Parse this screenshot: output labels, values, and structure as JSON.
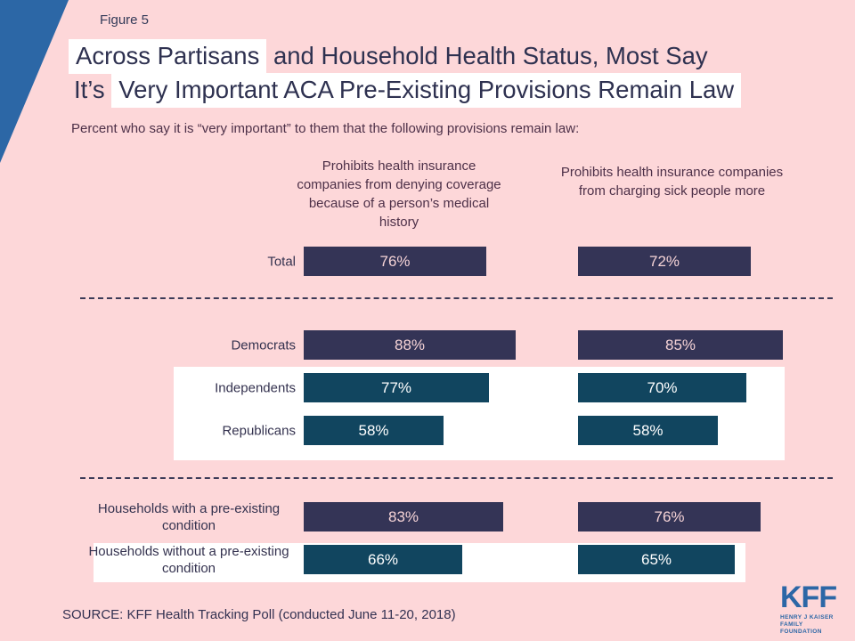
{
  "figure_label": "Figure 5",
  "title": {
    "line1_highlight": "Across Partisans",
    "line1_rest": " and Household Health Status, Most Say",
    "line2_pre": "It’s ",
    "line2_highlight": "Very Important ACA Pre-Existing Provisions Remain Law"
  },
  "subtitle": "Percent who say it is “very important” to them that the following provisions remain law:",
  "chart_data": {
    "type": "bar",
    "orientation": "horizontal",
    "unit": "%",
    "xlim": [
      0,
      100
    ],
    "grid": false,
    "columns": [
      "Prohibits health insurance companies from denying coverage because of a person’s medical history",
      "Prohibits health insurance companies from charging sick people more"
    ],
    "rows": [
      {
        "label": "Total",
        "values": [
          76,
          72
        ],
        "group": "navy"
      },
      {
        "label": "Democrats",
        "values": [
          88,
          85
        ],
        "group": "navy"
      },
      {
        "label": "Independents",
        "values": [
          77,
          70
        ],
        "group": "teal"
      },
      {
        "label": "Republicans",
        "values": [
          58,
          58
        ],
        "group": "teal"
      },
      {
        "label": "Households with a pre-existing condition",
        "values": [
          83,
          76
        ],
        "group": "navy"
      },
      {
        "label": "Households without a pre-existing condition",
        "values": [
          66,
          65
        ],
        "group": "teal"
      }
    ],
    "highlighted_row_groups": [
      [
        "Independents",
        "Republicans"
      ],
      [
        "Households without a pre-existing condition"
      ]
    ]
  },
  "source": "SOURCE: KFF Health Tracking Poll (conducted June 11-20, 2018)",
  "logo": {
    "name": "KFF",
    "tagline_line1": "HENRY J KAISER",
    "tagline_line2": "FAMILY FOUNDATION"
  },
  "colors": {
    "background": "#fdd7d9",
    "navy_bar": "#343456",
    "teal_bar": "#11455f",
    "accent_blue": "#2c67a6",
    "title_text": "#2e3150",
    "plum_text": "#4d3048",
    "highlight_band": "#ffffff",
    "value_text_on_navy": "#f5d3d6",
    "value_text_on_teal": "#ffffff"
  }
}
